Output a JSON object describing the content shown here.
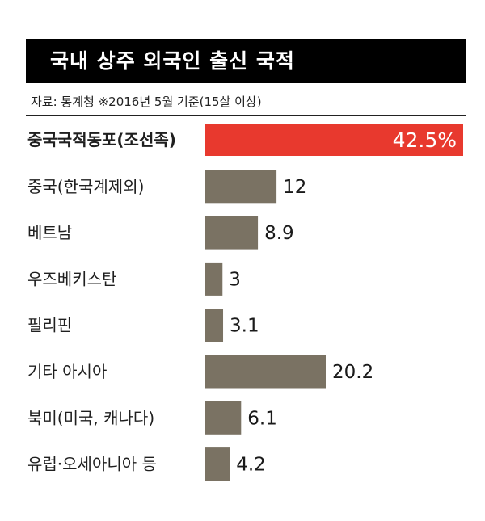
{
  "title": "국내 상주 외국인 출신 국적",
  "source": "자료: 통계청  ※2016년 5월 기준(15살 이상)",
  "colors": {
    "bar": "#7a7263",
    "highlight": "#e8392e",
    "title_bg": "#000000",
    "title_fg": "#ffffff"
  },
  "chart_data": {
    "type": "bar",
    "orientation": "horizontal",
    "categories": [
      "중국국적동포(조선족)",
      "중국(한국계제외)",
      "베트남",
      "우즈베키스탄",
      "필리핀",
      "기타 아시아",
      "북미(미국, 캐나다)",
      "유럽·오세아니아 등"
    ],
    "values": [
      42.5,
      12,
      8.9,
      3,
      3.1,
      20.2,
      6.1,
      4.2
    ],
    "value_labels": [
      "42.5%",
      "12",
      "8.9",
      "3",
      "3.1",
      "20.2",
      "6.1",
      "4.2"
    ],
    "highlight_index": 0,
    "unit": "%"
  }
}
